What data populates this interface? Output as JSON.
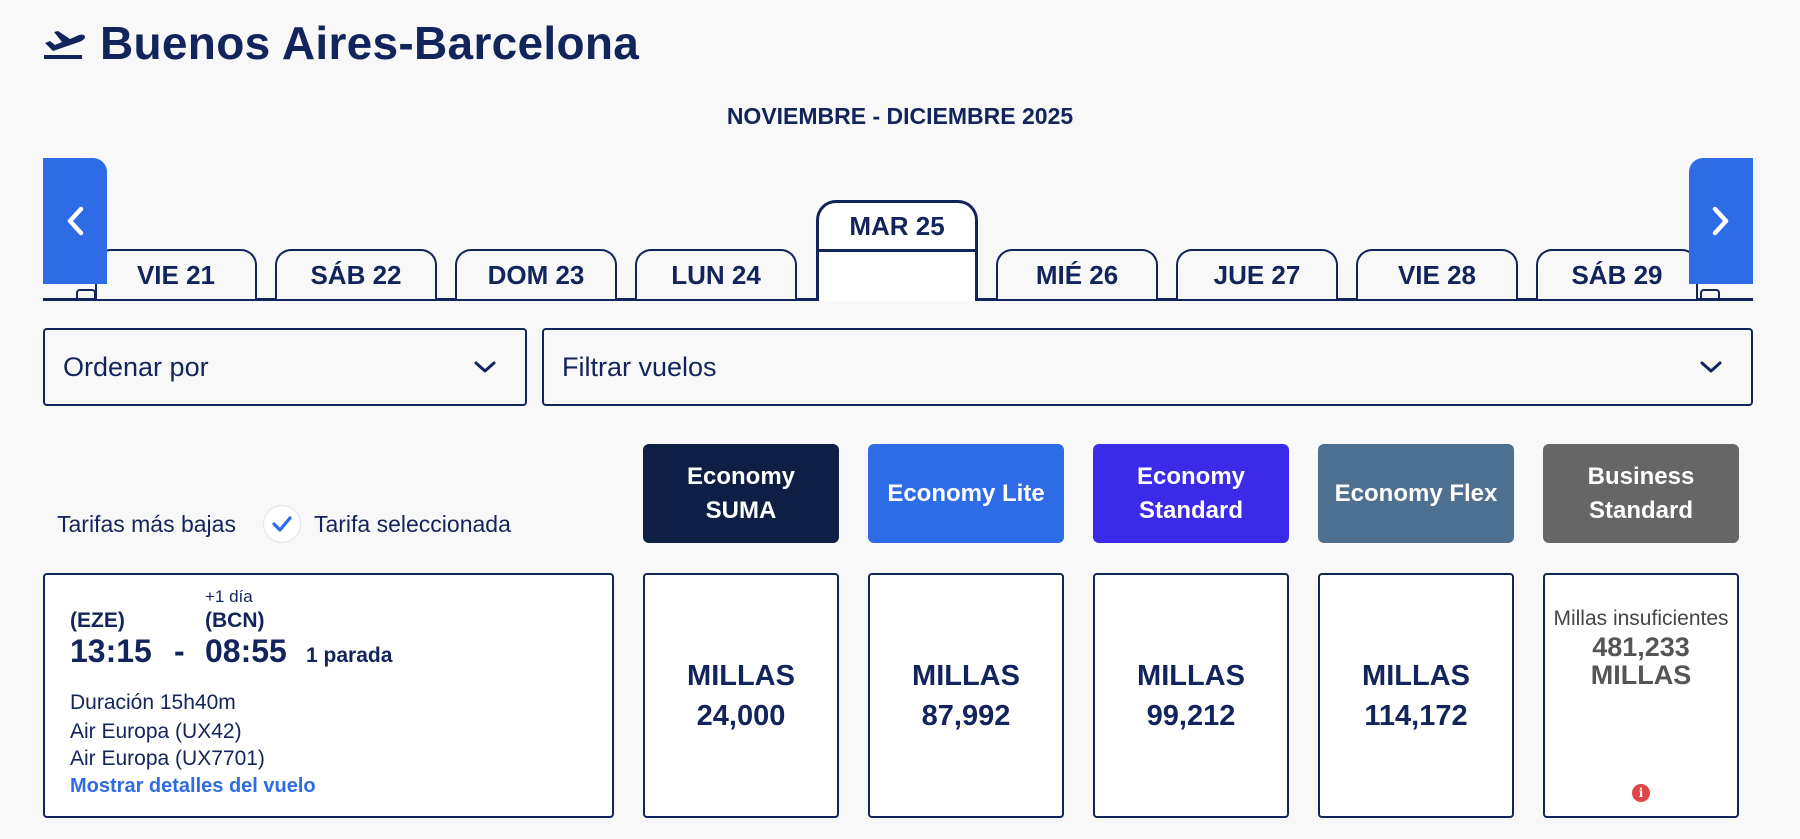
{
  "header": {
    "title": "Buenos Aires-Barcelona",
    "icon": "plane-takeoff-icon"
  },
  "calendar": {
    "month_label": "NOVIEMBRE - DICIEMBRE 2025",
    "prev_icon": "chevron-left-icon",
    "next_icon": "chevron-right-icon",
    "days": [
      "VIE 21",
      "SÁB 22",
      "DOM 23",
      "LUN 24",
      "MAR 25",
      "MIÉ 26",
      "JUE 27",
      "VIE 28",
      "SÁB 29"
    ],
    "selected_day": "MAR 25"
  },
  "controls": {
    "sort_label": "Ordenar por",
    "filter_label": "Filtrar vuelos"
  },
  "legend": {
    "lowest": "Tarifas más bajas",
    "selected": "Tarifa seleccionada"
  },
  "fares": [
    {
      "name": "Economy SUMA",
      "color": "#0f1e45"
    },
    {
      "name": "Economy Lite",
      "color": "#2e6be6"
    },
    {
      "name": "Economy Standard",
      "color": "#3b2ae8"
    },
    {
      "name": "Economy Flex",
      "color": "#4e7090"
    },
    {
      "name": "Business Standard",
      "color": "#666666"
    }
  ],
  "flight": {
    "next_day": "+1 día",
    "origin_code": "(EZE)",
    "dest_code": "(BCN)",
    "depart": "13:15",
    "separator": "-",
    "arrive": "08:55",
    "stops": "1 parada",
    "duration": "Duración 15h40m",
    "legs": [
      "Air Europa (UX42)",
      "Air Europa (UX7701)"
    ],
    "details_link": "Mostrar detalles del vuelo"
  },
  "prices": [
    {
      "unit": "MILLAS",
      "amount": "24,000"
    },
    {
      "unit": "MILLAS",
      "amount": "87,992"
    },
    {
      "unit": "MILLAS",
      "amount": "99,212"
    },
    {
      "unit": "MILLAS",
      "amount": "114,172"
    }
  ],
  "business_price": {
    "label": "Millas insuficientes",
    "amount": "481,233",
    "unit": "MILLAS",
    "icon": "info-icon"
  },
  "colors": {
    "primary": "#13235b",
    "accent": "#2e6be6",
    "error": "#e04646"
  }
}
